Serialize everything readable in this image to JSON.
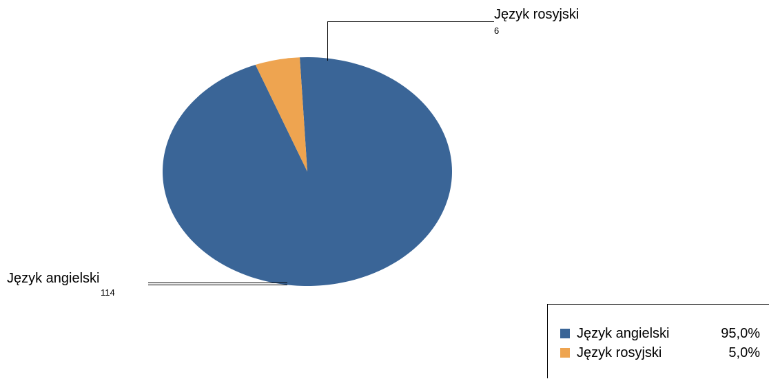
{
  "chart_data": {
    "type": "pie",
    "start_angle_deg": -3,
    "slices": [
      {
        "label": "Język angielski",
        "value": 114,
        "percent": "95,0%",
        "color": "#3a6597"
      },
      {
        "label": "Język rosyjski",
        "value": 6,
        "percent": "5,0%",
        "color": "#eea450"
      }
    ],
    "legend_position": "bottom-right"
  }
}
